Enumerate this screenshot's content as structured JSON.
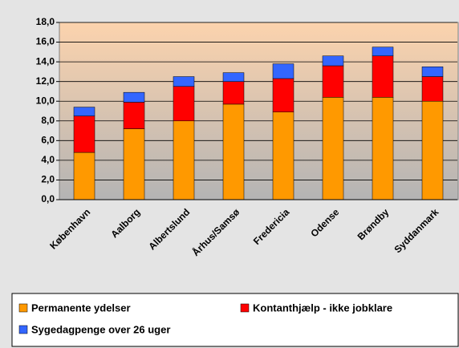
{
  "chart_data": {
    "type": "stacked_bar",
    "categories": [
      "København",
      "Aalborg",
      "Albertslund",
      "Århus/Samsø",
      "Fredericia",
      "Odense",
      "Brøndby",
      "Syddanmark"
    ],
    "series": [
      {
        "name": "Permanente ydelser",
        "color": "#ff9900",
        "values": [
          4.8,
          7.2,
          8.0,
          9.7,
          8.9,
          10.4,
          10.4,
          10.0
        ]
      },
      {
        "name": "Kontanthjælp - ikke jobklare",
        "color": "#ff0000",
        "values": [
          3.7,
          2.7,
          3.5,
          2.3,
          3.4,
          3.2,
          4.2,
          2.5
        ]
      },
      {
        "name": "Sygedagpenge over 26 uger",
        "color": "#3366ff",
        "values": [
          0.9,
          1.0,
          1.0,
          0.9,
          1.5,
          1.0,
          0.9,
          1.0
        ]
      }
    ],
    "ylim": [
      0,
      18
    ],
    "yticks": [
      {
        "value": 0,
        "label": "0,0"
      },
      {
        "value": 2,
        "label": "2,0"
      },
      {
        "value": 4,
        "label": "4,0"
      },
      {
        "value": 6,
        "label": "6,0"
      },
      {
        "value": 8,
        "label": "8,0"
      },
      {
        "value": 10,
        "label": "10,0"
      },
      {
        "value": 12,
        "label": "12,0"
      },
      {
        "value": 14,
        "label": "14,0"
      },
      {
        "value": 16,
        "label": "16,0"
      },
      {
        "value": 18,
        "label": "18,0"
      }
    ],
    "grid": true,
    "legend": "bottom"
  }
}
